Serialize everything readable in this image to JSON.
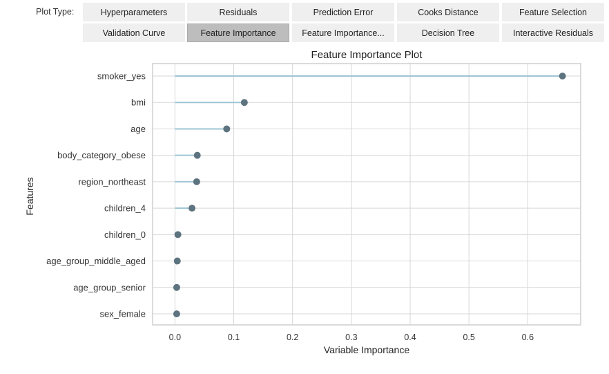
{
  "plot_type_label": "Plot Type:",
  "buttons": [
    {
      "label": "Hyperparameters",
      "active": false
    },
    {
      "label": "Residuals",
      "active": false
    },
    {
      "label": "Prediction Error",
      "active": false
    },
    {
      "label": "Cooks Distance",
      "active": false
    },
    {
      "label": "Feature Selection",
      "active": false
    },
    {
      "label": "Validation Curve",
      "active": false
    },
    {
      "label": "Feature Importance",
      "active": true
    },
    {
      "label": "Feature Importance...",
      "active": false
    },
    {
      "label": "Decision Tree",
      "active": false
    },
    {
      "label": "Interactive Residuals",
      "active": false
    }
  ],
  "chart_data": {
    "type": "lollipop",
    "title": "Feature Importance Plot",
    "xlabel": "Variable Importance",
    "ylabel": "Features",
    "categories": [
      "smoker_yes",
      "bmi",
      "age",
      "body_category_obese",
      "region_northeast",
      "children_4",
      "children_0",
      "age_group_middle_aged",
      "age_group_senior",
      "sex_female"
    ],
    "values": [
      0.659,
      0.118,
      0.088,
      0.038,
      0.037,
      0.029,
      0.005,
      0.004,
      0.003,
      0.003
    ],
    "xticks": [
      0.0,
      0.1,
      0.2,
      0.3,
      0.4,
      0.5,
      0.6
    ],
    "xtick_labels": [
      "0.0",
      "0.1",
      "0.2",
      "0.3",
      "0.4",
      "0.5",
      "0.6"
    ],
    "xlim": [
      -0.038,
      0.69
    ],
    "grid": true,
    "colors": {
      "stem": "#9ec4d6",
      "dot": "#5e7380",
      "grid": "#d7d7d7",
      "frame": "#cfcfcf"
    }
  }
}
